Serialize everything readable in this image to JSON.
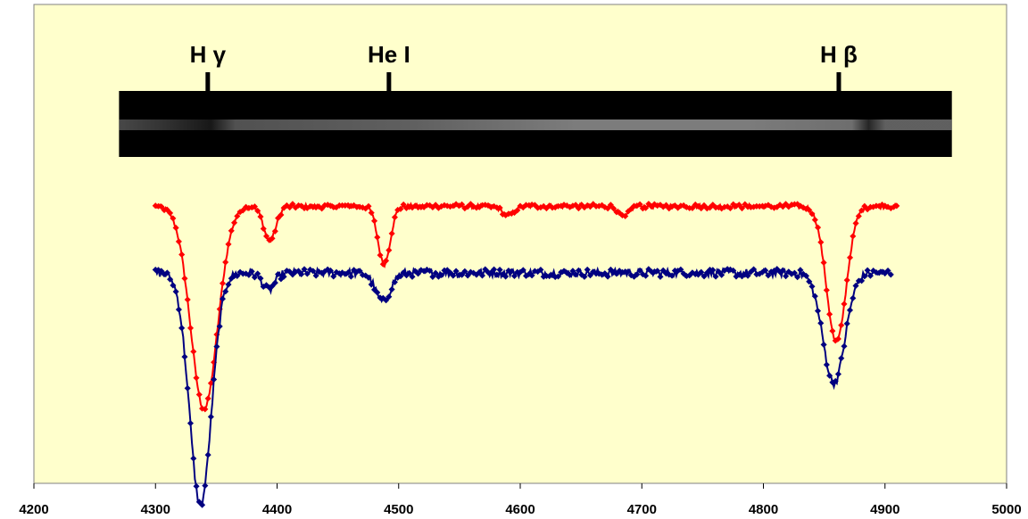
{
  "chart_data": {
    "type": "scatter",
    "title": "",
    "xlabel": "",
    "ylabel": "",
    "xlim": [
      4200,
      5000
    ],
    "x_ticks": [
      "4200",
      "4300",
      "4400",
      "4500",
      "4600",
      "4700",
      "4800",
      "4900",
      "5000"
    ],
    "y_ticks_visible": false,
    "grid": false,
    "plot_background": "#ffffcc",
    "spectral_line_labels": [
      {
        "label": "H γ",
        "wavelength": 4343
      },
      {
        "label": "He I",
        "wavelength": 4492
      },
      {
        "label": "H β",
        "wavelength": 4862
      }
    ],
    "spectrum_image": {
      "description_free": true,
      "wavelength_range": [
        4270,
        4955
      ]
    },
    "series": [
      {
        "color": "#ff0000",
        "x_range": [
          4300,
          4910
        ],
        "continuum": 0.95,
        "absorption_lines": [
          {
            "center": 4340,
            "depth": 0.7,
            "width": 11
          },
          {
            "center": 4394,
            "depth": 0.12,
            "width": 5
          },
          {
            "center": 4488,
            "depth": 0.2,
            "width": 5
          },
          {
            "center": 4590,
            "depth": 0.03,
            "width": 5
          },
          {
            "center": 4685,
            "depth": 0.04,
            "width": 4
          },
          {
            "center": 4860,
            "depth": 0.47,
            "width": 8
          }
        ]
      },
      {
        "color": "#000080",
        "x_range": [
          4300,
          4907
        ],
        "continuum": 0.72,
        "absorption_lines": [
          {
            "center": 4337,
            "depth": 0.8,
            "width": 9
          },
          {
            "center": 4393,
            "depth": 0.06,
            "width": 5
          },
          {
            "center": 4487,
            "depth": 0.1,
            "width": 6
          },
          {
            "center": 4858,
            "depth": 0.38,
            "width": 9
          }
        ]
      }
    ]
  }
}
